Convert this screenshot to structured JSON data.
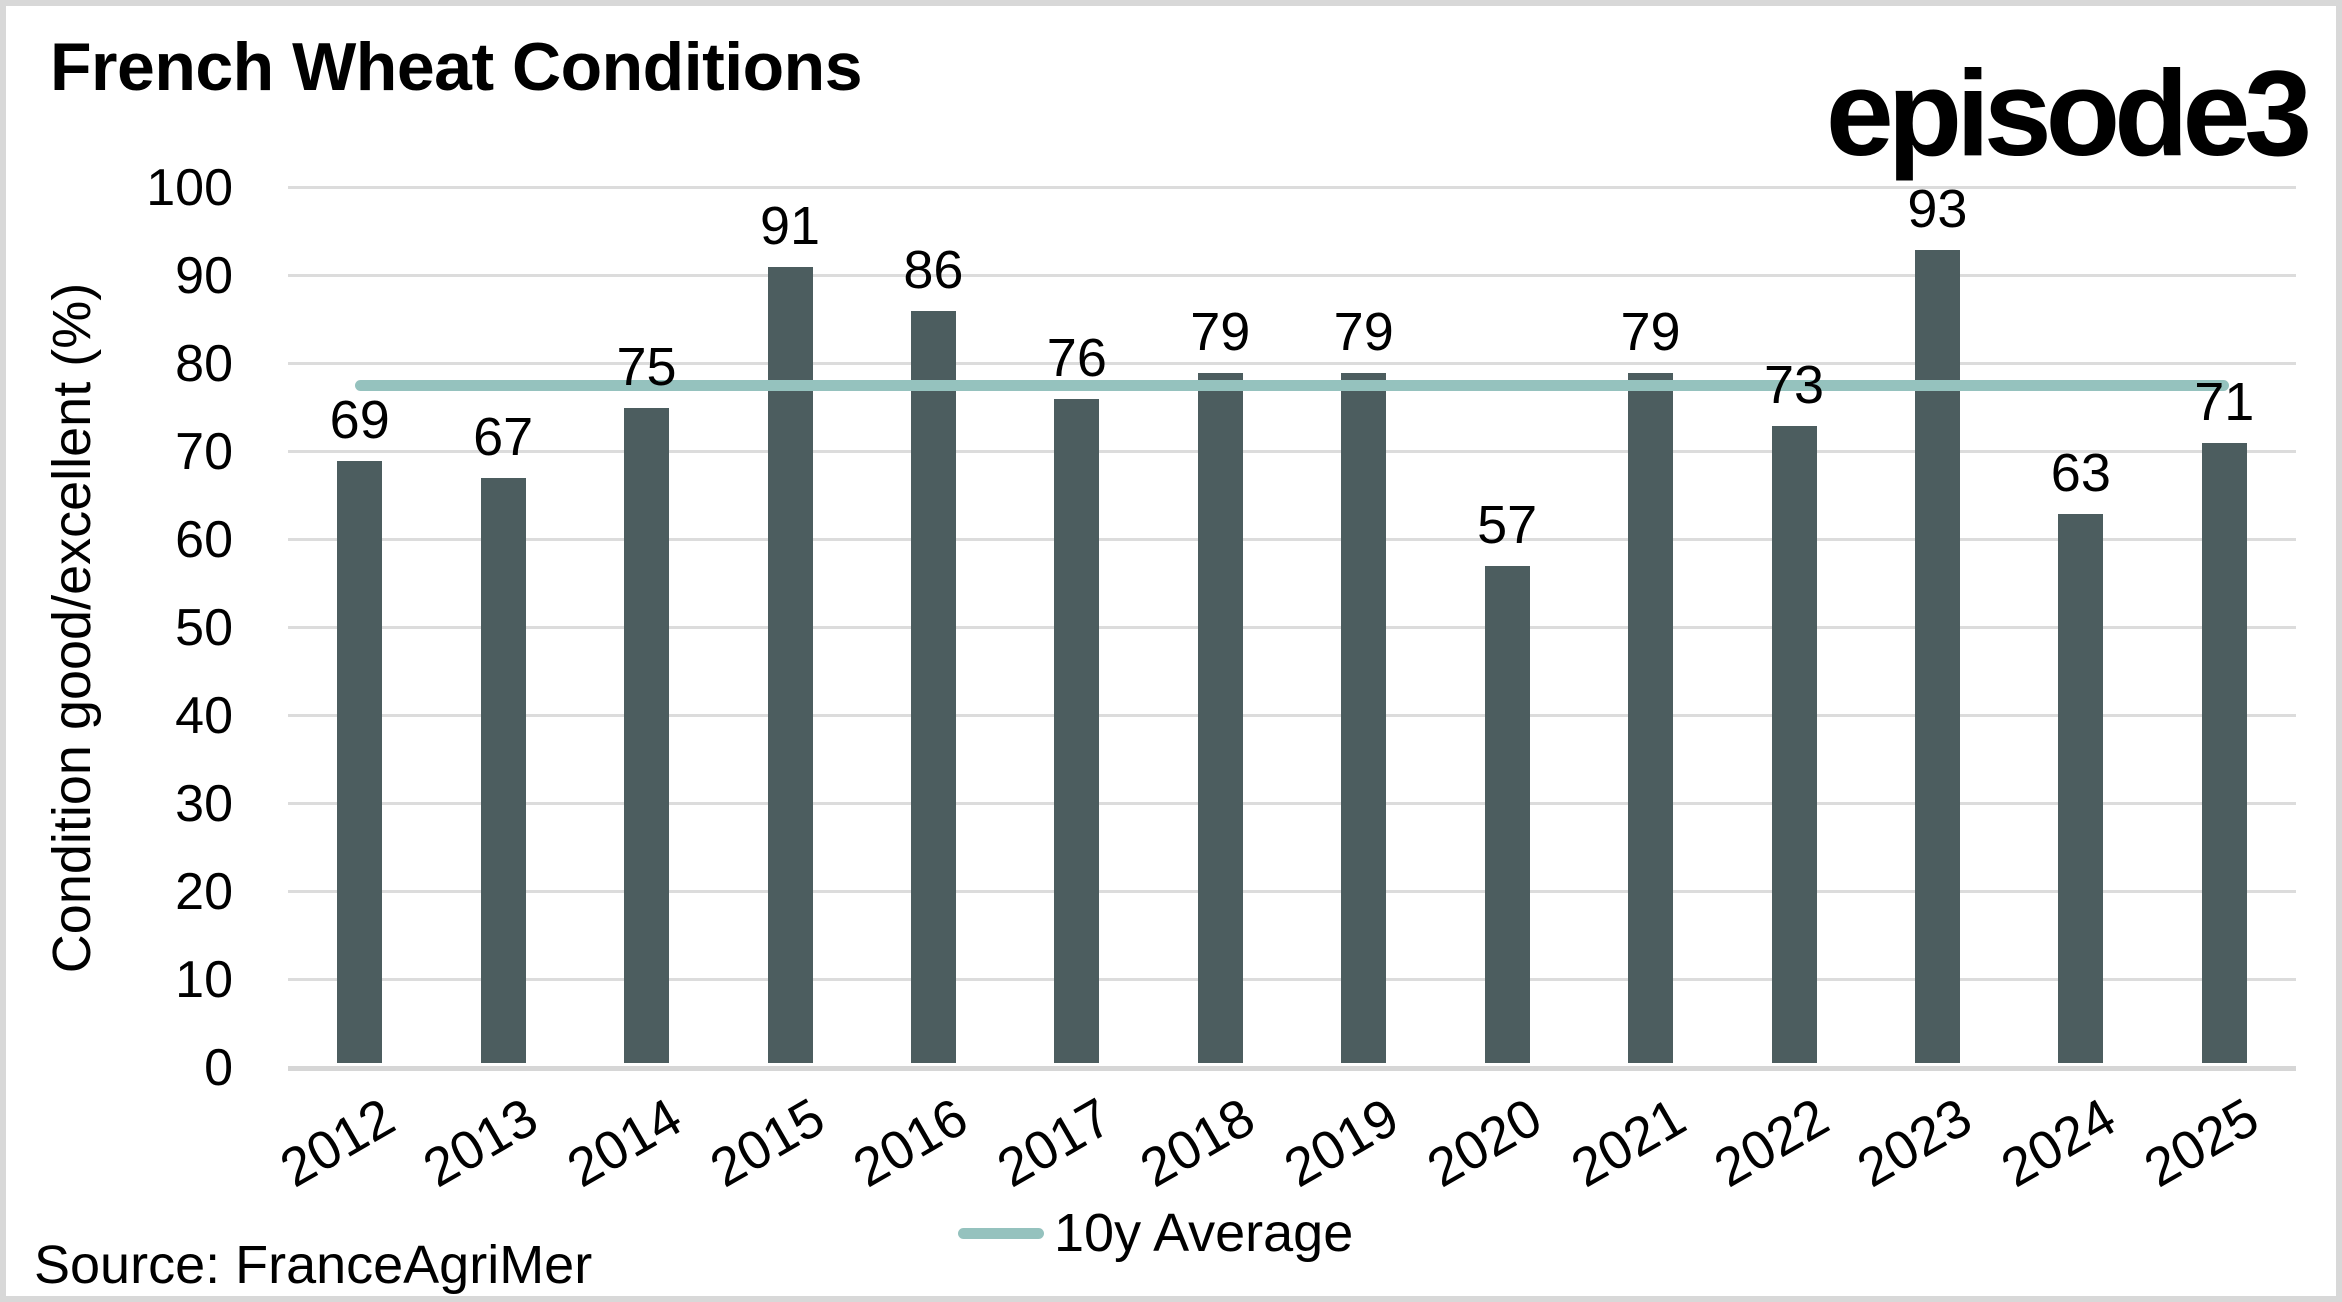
{
  "header": {
    "title": "French Wheat Conditions",
    "logo": "episode3"
  },
  "chart_data": {
    "type": "bar",
    "title": "French Wheat Conditions",
    "categories": [
      "2012",
      "2013",
      "2014",
      "2015",
      "2016",
      "2017",
      "2018",
      "2019",
      "2020",
      "2021",
      "2022",
      "2023",
      "2024",
      "2025"
    ],
    "values": [
      69,
      67,
      75,
      91,
      86,
      76,
      79,
      79,
      57,
      79,
      73,
      93,
      63,
      71
    ],
    "bar_labels": [
      "69",
      "67",
      "75",
      "91",
      "86",
      "76",
      "79",
      "79",
      "57",
      "79",
      "73",
      "93",
      "63",
      "71"
    ],
    "xlabel": "",
    "ylabel": "Condition good/excellent (%)",
    "ylim": [
      0,
      100
    ],
    "yticks": [
      0,
      10,
      20,
      30,
      40,
      50,
      60,
      70,
      80,
      90,
      100
    ],
    "grid": "horizontal",
    "legend_position": "bottom-center",
    "average_line": {
      "label": "10y Average",
      "value": 77.6
    },
    "colors": {
      "bar": "#4c5d5f",
      "average_line": "#95c2be",
      "gridline": "#dcdcdc",
      "axis_line": "#d6d6d6",
      "text": "#000000",
      "border": "#d8d8d8"
    }
  },
  "legend": {
    "label": "10y Average"
  },
  "footer": {
    "source": "Source: FranceAgriMer"
  }
}
